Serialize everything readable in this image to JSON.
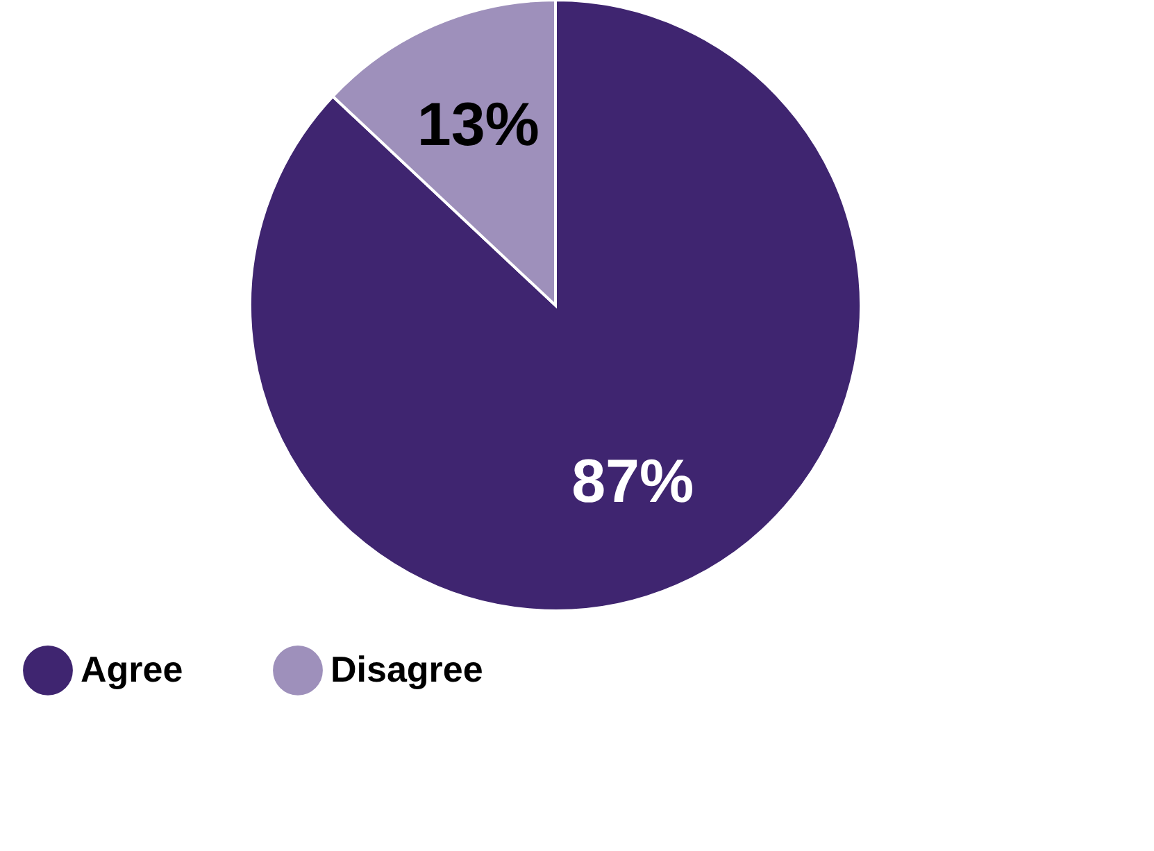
{
  "chart_data": {
    "type": "pie",
    "categories": [
      "Agree",
      "Disagree"
    ],
    "values": [
      87,
      13
    ],
    "colors": [
      "#3f2570",
      "#9e90bb"
    ],
    "value_labels": [
      "87%",
      "13%"
    ],
    "legend": "bottom"
  }
}
